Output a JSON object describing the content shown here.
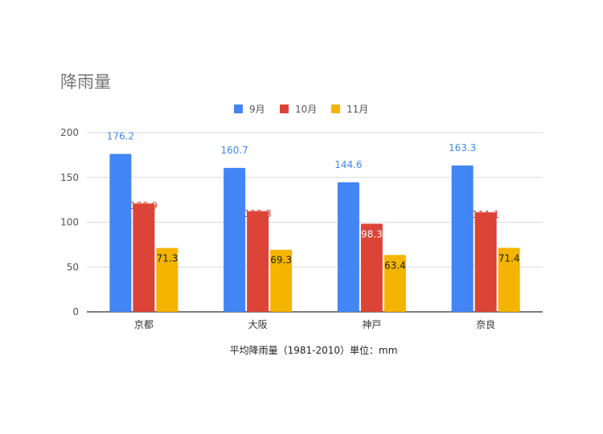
{
  "chart_data": {
    "type": "bar",
    "title": "降雨量",
    "xlabel": "平均降雨量（1981-2010）単位：mm",
    "ylabel": "",
    "categories": [
      "京都",
      "大阪",
      "神戸",
      "奈良"
    ],
    "series": [
      {
        "name": "9月",
        "values": [
          176.2,
          160.7,
          144.6,
          163.3
        ],
        "color": "#4285f4",
        "label_color": "#4285f4"
      },
      {
        "name": "10月",
        "values": [
          120.9,
          112.3,
          98.3,
          111.1
        ],
        "color": "#db4437",
        "label_color_outside": "#db4437",
        "label_color_inside": "#ffffff"
      },
      {
        "name": "11月",
        "values": [
          71.3,
          69.3,
          63.4,
          71.4
        ],
        "color": "#f4b400",
        "label_color": "#222222"
      }
    ],
    "ylim": [
      0,
      200
    ],
    "yticks": [
      "0",
      "50",
      "100",
      "150",
      "200"
    ],
    "grid": true,
    "legend_position": "top-center",
    "axis_line_color": "#333333",
    "grid_color": "#d9d9d9",
    "text_color": "#555555"
  }
}
